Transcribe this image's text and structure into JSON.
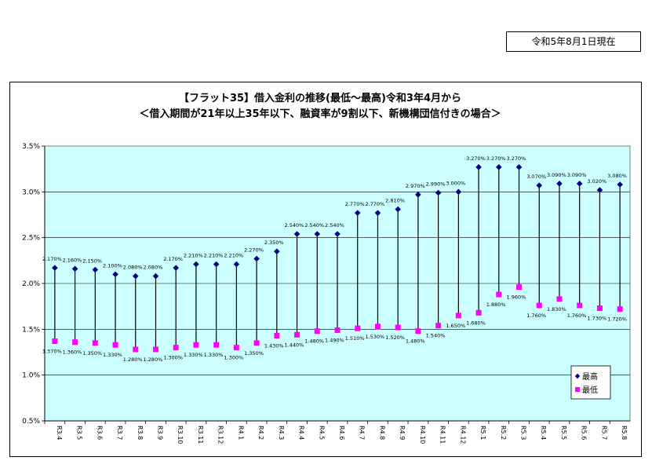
{
  "header": {
    "date_label": "令和5年8月1日現在"
  },
  "chart_data": {
    "type": "high-low",
    "title": "【フラット35】借入金利の推移(最低～最高)令和3年4月から",
    "subtitle": "＜借入期間が21年以上35年以下、融資率が9割以下、新機構団信付きの場合＞",
    "xlabel": "",
    "ylabel": "",
    "ylim": [
      0.5,
      3.5
    ],
    "yticks": [
      "0.5%",
      "1.0%",
      "1.5%",
      "2.0%",
      "2.5%",
      "3.0%",
      "3.5%"
    ],
    "categories": [
      "R3.4",
      "R3.5",
      "R3.6",
      "R3.7",
      "R3.8",
      "R3.9",
      "R3.10",
      "R3.11",
      "R3.12",
      "R4.1",
      "R4.2",
      "R4.3",
      "R4.4",
      "R4.5",
      "R4.6",
      "R4.7",
      "R4.8",
      "R4.9",
      "R4.10",
      "R4.11",
      "R4.12",
      "R5.1",
      "R5.2",
      "R5.3",
      "R5.4",
      "R5.5",
      "R5.6",
      "R5.7",
      "R5.8"
    ],
    "series": [
      {
        "name": "最高",
        "marker": "diamond",
        "color": "#000080",
        "values": [
          2.17,
          2.16,
          2.15,
          2.1,
          2.08,
          2.08,
          2.17,
          2.21,
          2.21,
          2.21,
          2.27,
          2.35,
          2.54,
          2.54,
          2.54,
          2.77,
          2.77,
          2.81,
          2.97,
          2.99,
          3.0,
          3.27,
          3.27,
          3.27,
          3.07,
          3.09,
          3.09,
          3.02,
          3.08
        ],
        "labels": [
          "2.170%",
          "2.160%",
          "2.150%",
          "2.100%",
          "2.080%",
          "2.080%",
          "2.170%",
          "2.210%",
          "2.210%",
          "2.210%",
          "2.270%",
          "2.350%",
          "2.540%",
          "2.540%",
          "2.540%",
          "2.770%",
          "2.770%",
          "2.810%",
          "2.970%",
          "2.990%",
          "3.000%",
          "3.270%",
          "3.270%",
          "3.270%",
          "3.070%",
          "3.090%",
          "3.090%",
          "3.020%",
          "3.080%"
        ]
      },
      {
        "name": "最低",
        "marker": "square",
        "color": "#ff00ff",
        "values": [
          1.37,
          1.36,
          1.35,
          1.33,
          1.28,
          1.28,
          1.3,
          1.33,
          1.33,
          1.3,
          1.35,
          1.43,
          1.44,
          1.48,
          1.49,
          1.51,
          1.53,
          1.52,
          1.48,
          1.54,
          1.65,
          1.68,
          1.88,
          1.96,
          1.76,
          1.83,
          1.76,
          1.73,
          1.72
        ],
        "labels": [
          "1.370%",
          "1.360%",
          "1.350%",
          "1.330%",
          "1.280%",
          "1.280%",
          "1.300%",
          "1.330%",
          "1.330%",
          "1.300%",
          "1.350%",
          "1.430%",
          "1.440%",
          "1.480%",
          "1.490%",
          "1.510%",
          "1.530%",
          "1.520%",
          "1.480%",
          "1.540%",
          "1.650%",
          "1.680%",
          "1.880%",
          "1.960%",
          "1.760%",
          "1.830%",
          "1.760%",
          "1.730%",
          "1.720%"
        ]
      }
    ],
    "grid": "horizontal",
    "legend_position": "bottom-right",
    "plot_background": "#ccffff"
  }
}
